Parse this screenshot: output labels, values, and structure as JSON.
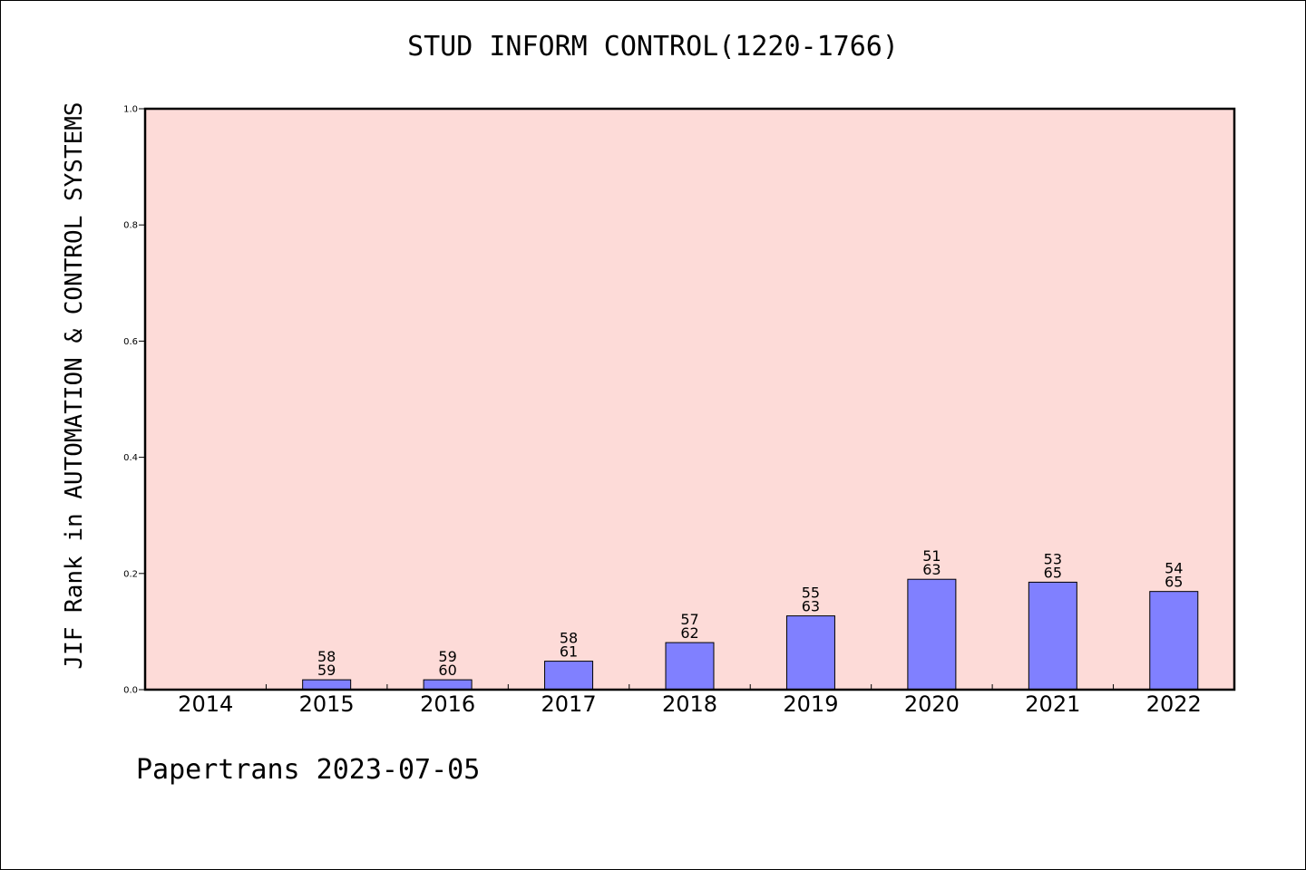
{
  "chart_data": {
    "type": "bar",
    "title": "STUD INFORM CONTROL(1220-1766)",
    "xlabel": "",
    "ylabel": "JIF Rank in AUTOMATION & CONTROL SYSTEMS",
    "categories": [
      "2014",
      "2015",
      "2016",
      "2017",
      "2018",
      "2019",
      "2020",
      "2021",
      "2022"
    ],
    "values": [
      0,
      0.017,
      0.017,
      0.049,
      0.081,
      0.127,
      0.19,
      0.185,
      0.169
    ],
    "ranks": [
      "",
      "58",
      "59",
      "58",
      "57",
      "55",
      "51",
      "53",
      "54"
    ],
    "totals": [
      "",
      "59",
      "60",
      "61",
      "62",
      "63",
      "63",
      "65",
      "65"
    ],
    "ylim": [
      0,
      1.0
    ],
    "yticks": [
      "0.0",
      "0.2",
      "0.4",
      "0.6",
      "0.8",
      "1.0"
    ],
    "grid": false,
    "colors": {
      "plot_background": "#fddbd8",
      "bar_fill": "#8080ff",
      "bar_edge": "#000000"
    }
  },
  "footer": "Papertrans 2023-07-05"
}
